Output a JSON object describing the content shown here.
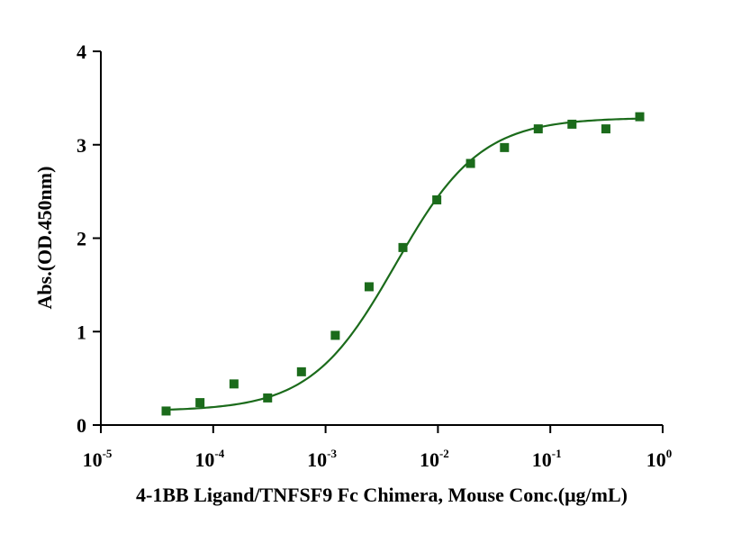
{
  "chart_data": {
    "type": "scatter",
    "xlabel": "4-1BB Ligand/TNFSF9 Fc Chimera, Mouse Conc.(μg/mL)",
    "ylabel": "Abs.(OD.450nm)",
    "xscale": "log",
    "xlim": [
      1e-05,
      1
    ],
    "ylim": [
      0,
      4
    ],
    "x_ticks": [
      {
        "base": "10",
        "exp": "-5",
        "value": 1e-05
      },
      {
        "base": "10",
        "exp": "-4",
        "value": 0.0001
      },
      {
        "base": "10",
        "exp": "-3",
        "value": 0.001
      },
      {
        "base": "10",
        "exp": "-2",
        "value": 0.01
      },
      {
        "base": "10",
        "exp": "-1",
        "value": 0.1
      },
      {
        "base": "10",
        "exp": "0",
        "value": 1
      }
    ],
    "y_ticks": [
      "0",
      "1",
      "2",
      "3",
      "4"
    ],
    "grid": false,
    "series": [
      {
        "marker": "square",
        "color": "#1b6b1b",
        "points": [
          {
            "x": 3.81e-05,
            "y": 0.15
          },
          {
            "x": 7.63e-05,
            "y": 0.24
          },
          {
            "x": 0.000153,
            "y": 0.44
          },
          {
            "x": 0.000305,
            "y": 0.29
          },
          {
            "x": 0.00061,
            "y": 0.57
          },
          {
            "x": 0.00122,
            "y": 0.96
          },
          {
            "x": 0.00244,
            "y": 1.48
          },
          {
            "x": 0.00488,
            "y": 1.9
          },
          {
            "x": 0.00977,
            "y": 2.41
          },
          {
            "x": 0.0195,
            "y": 2.8
          },
          {
            "x": 0.0391,
            "y": 2.97
          },
          {
            "x": 0.0781,
            "y": 3.17
          },
          {
            "x": 0.156,
            "y": 3.22
          },
          {
            "x": 0.3125,
            "y": 3.17
          },
          {
            "x": 0.625,
            "y": 3.3
          }
        ]
      }
    ],
    "fit": {
      "model": "4PL",
      "color": "#1b6b1b",
      "bottom": 0.15,
      "top": 3.29,
      "ec50": 0.0042,
      "hill": 1.15,
      "x_range": [
        3.81e-05,
        0.625
      ]
    }
  }
}
